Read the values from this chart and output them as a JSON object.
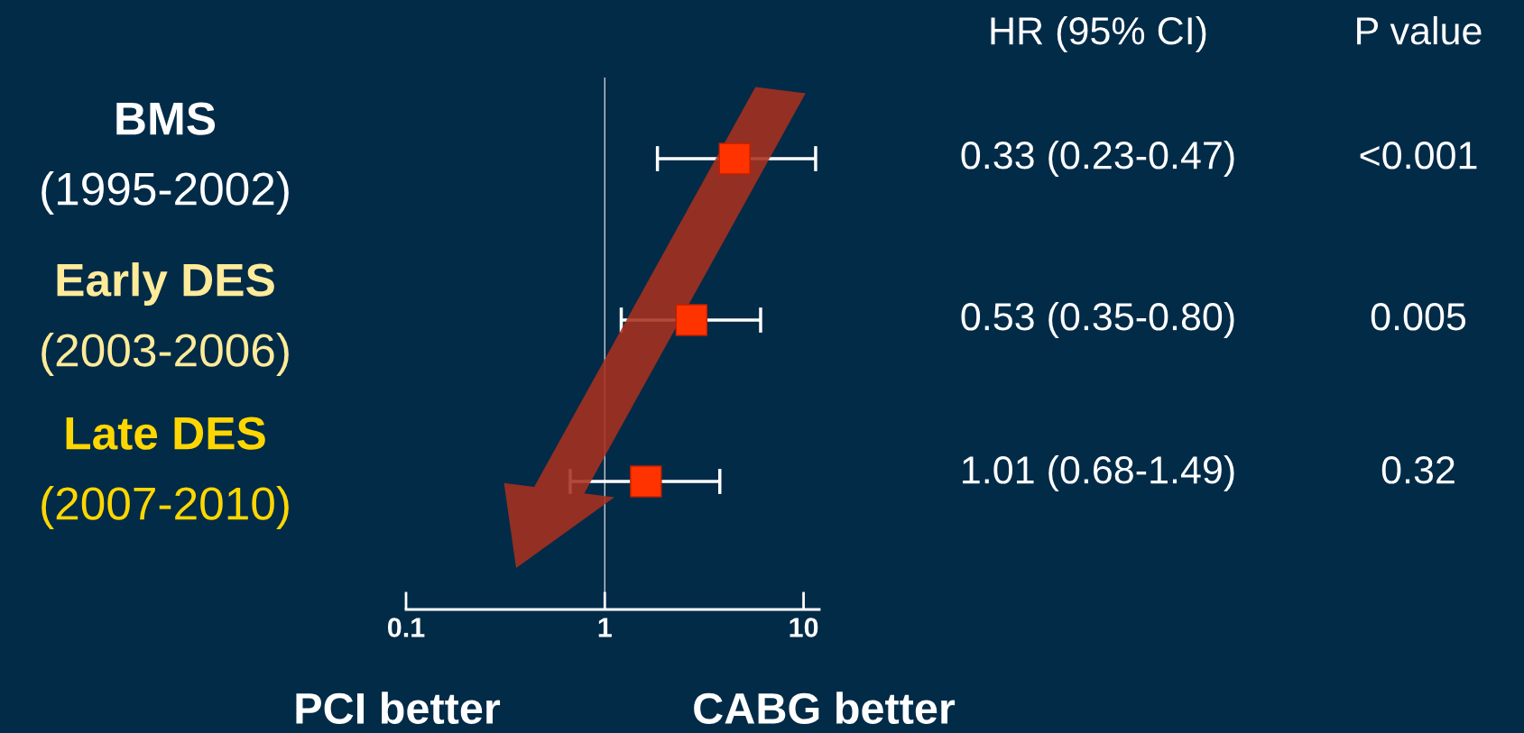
{
  "chart_data": {
    "type": "scatter",
    "orientation": "horizontal",
    "marker": "square",
    "categories": [
      "BMS\n(1995-2002)",
      "Early DES\n(2003-2006)",
      "Late DES\n(2007-2010)"
    ],
    "values": [
      4.5,
      2.73,
      1.61
    ],
    "errors": [
      [
        1.84,
        11.5
      ],
      [
        1.21,
        6.08
      ],
      [
        0.67,
        3.79
      ]
    ],
    "color": "#ff3300",
    "log": "x",
    "xlim": [
      0.1,
      12
    ],
    "xticks": [
      0.1,
      1,
      10
    ],
    "tick_labels": "x",
    "grid": false,
    "legend": false,
    "ref_lines": [
      {
        "axis": "x",
        "value": 1,
        "color": "#c8ccd2"
      }
    ],
    "annotations": [
      "HR (95% CI)",
      "P value",
      "0.33 (0.23-0.47)",
      "<0.001",
      "0.53 (0.35-0.80)",
      "0.005",
      "1.01 (0.68-1.49)",
      "0.32",
      "PCI better",
      "CABG better"
    ]
  }
}
